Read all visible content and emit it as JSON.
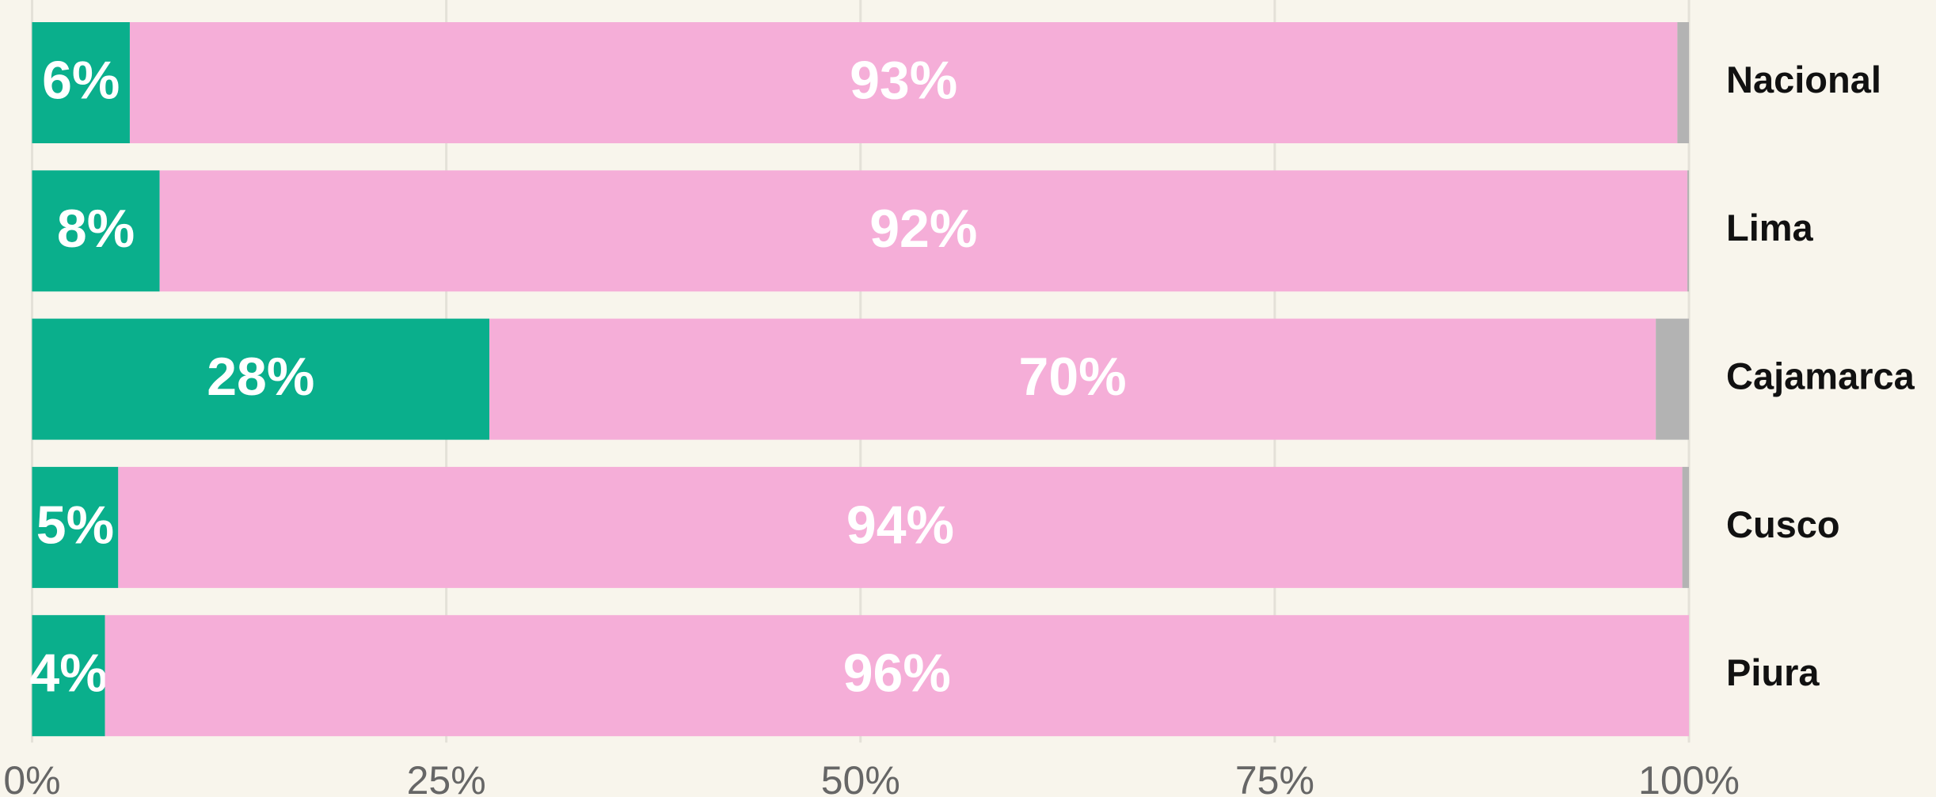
{
  "chart_data": {
    "type": "stacked_barh",
    "categories": [
      "Nacional",
      "Lima",
      "Cajamarca",
      "Cusco",
      "Piura"
    ],
    "series": [
      {
        "color": "#0aaf8c",
        "values": [
          5.9,
          7.7,
          27.6,
          5.2,
          4.4
        ],
        "value_labels": [
          "6%",
          "8%",
          "28%",
          "5%",
          "4%"
        ]
      },
      {
        "color": "#f5aed8",
        "values": [
          93.4,
          92.2,
          70.4,
          94.4,
          95.6
        ],
        "value_labels": [
          "93%",
          "92%",
          "70%",
          "94%",
          "96%"
        ]
      },
      {
        "color": "#b3b3b3",
        "values": [
          0.7,
          0.1,
          2.0,
          0.4,
          0.0
        ]
      }
    ],
    "xlim": [
      0,
      100
    ],
    "xticks": [
      {
        "value": 0,
        "label": "0%"
      },
      {
        "value": 25,
        "label": "25%"
      },
      {
        "value": 50,
        "label": "50%"
      },
      {
        "value": 75,
        "label": "75%"
      },
      {
        "value": 100,
        "label": "100%"
      }
    ],
    "grid": true
  }
}
